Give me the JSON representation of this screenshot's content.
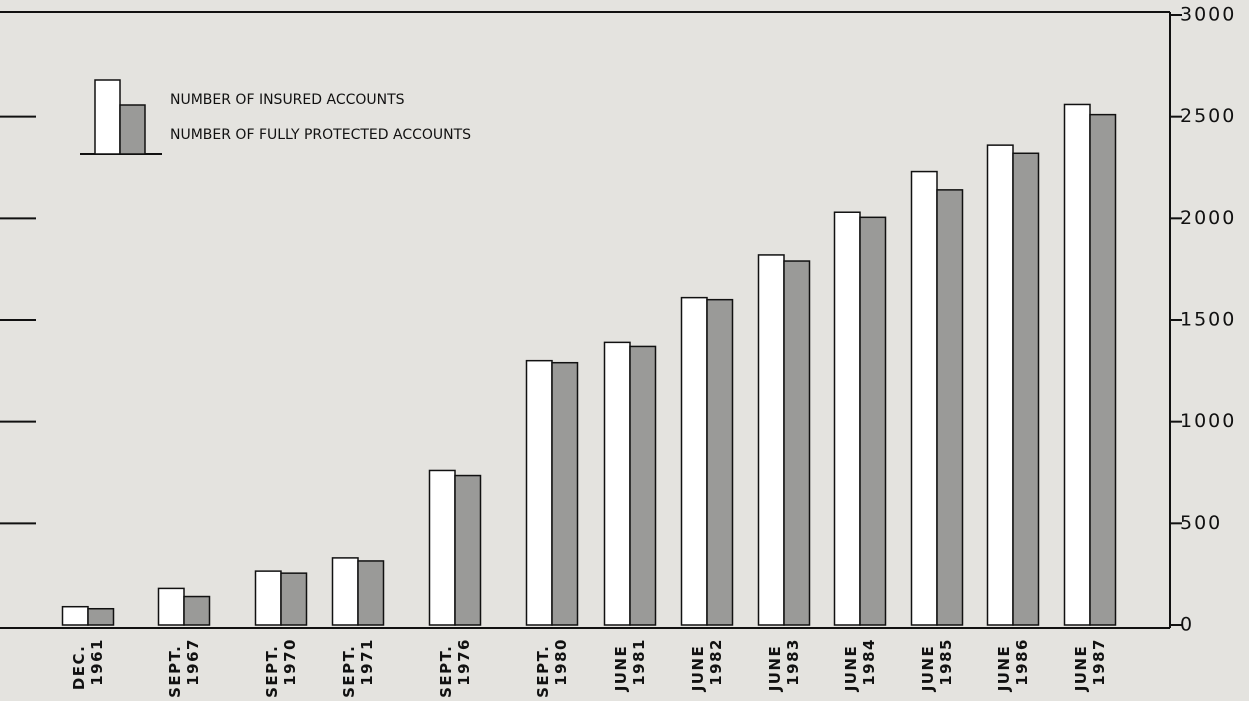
{
  "chart_data": {
    "type": "bar",
    "categories": [
      "DEC. 1961",
      "SEPT. 1967",
      "SEPT. 1970",
      "SEPT. 1971",
      "SEPT. 1976",
      "SEPT. 1980",
      "JUNE 1981",
      "JUNE 1982",
      "JUNE 1983",
      "JUNE 1984",
      "JUNE 1985",
      "JUNE 1986",
      "JUNE 1987"
    ],
    "series": [
      {
        "name": "NUMBER OF INSURED ACCOUNTS",
        "color": "#ffffff",
        "values": [
          90,
          180,
          265,
          330,
          760,
          1300,
          1390,
          1610,
          1820,
          2030,
          2230,
          2360,
          2560
        ]
      },
      {
        "name": "NUMBER OF FULLY PROTECTED ACCOUNTS",
        "color": "#9a9a98",
        "values": [
          80,
          140,
          255,
          315,
          735,
          1290,
          1370,
          1600,
          1790,
          2005,
          2140,
          2320,
          2510
        ]
      }
    ],
    "ylim": [
      0,
      3000
    ],
    "yticks": [
      0,
      500,
      1000,
      1500,
      2000,
      2500,
      3000
    ]
  }
}
